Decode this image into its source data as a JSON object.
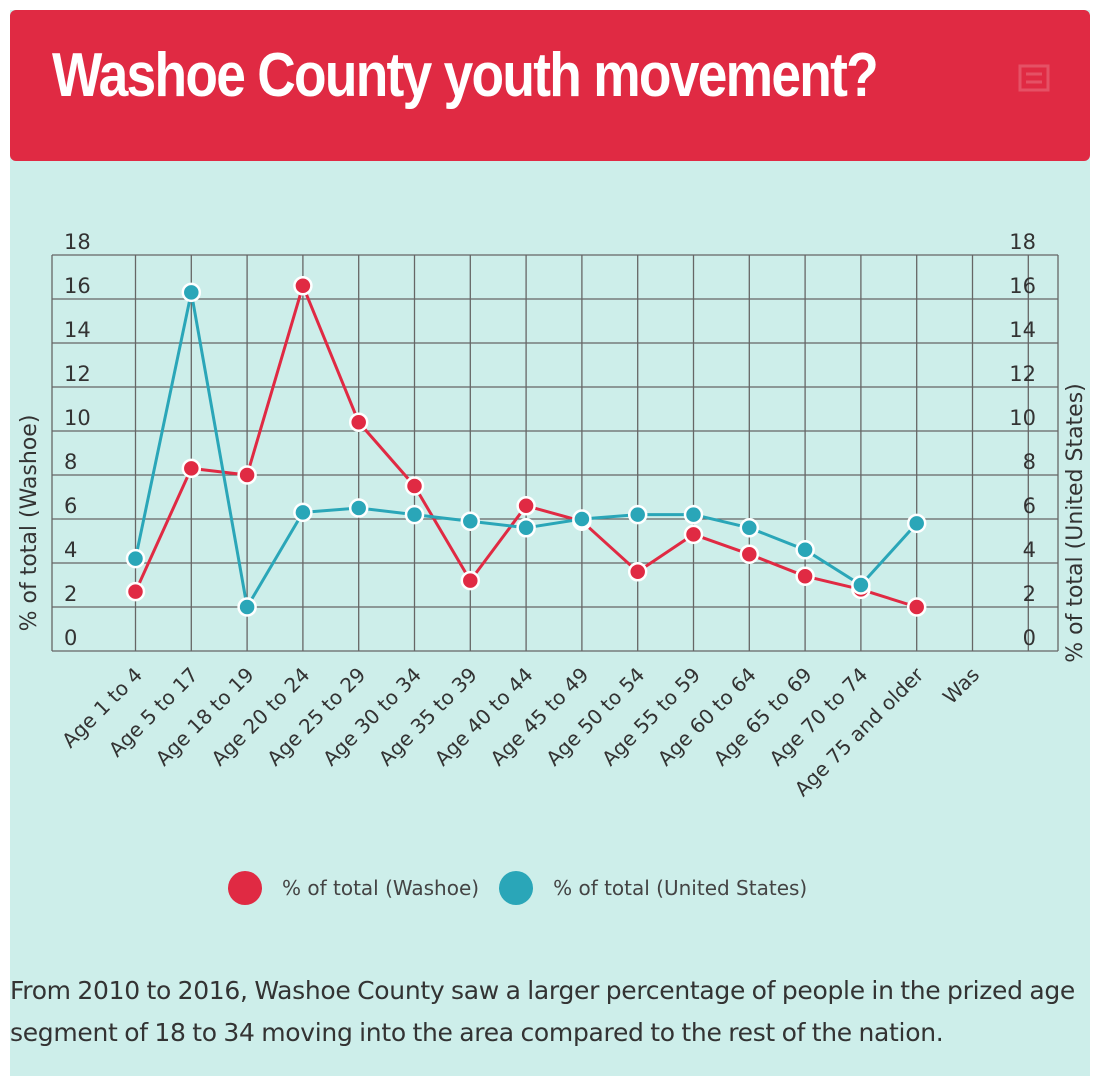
{
  "header": {
    "title": "Washoe County youth movement?"
  },
  "chart_data": {
    "type": "line",
    "title": "Washoe County youth movement?",
    "categories": [
      "Age 1 to 4",
      "Age 5 to 17",
      "Age 18 to 19",
      "Age 20 to 24",
      "Age 25 to 29",
      "Age 30 to 34",
      "Age 35 to 39",
      "Age 40 to 44",
      "Age 45 to 49",
      "Age 50 to 54",
      "Age 55 to 59",
      "Age 60 to 64",
      "Age 65 to 69",
      "Age 70 to 74",
      "Age 75 and older",
      "Was"
    ],
    "series": [
      {
        "name": "% of total (Washoe)",
        "color": "#e02a43",
        "axis": "left",
        "values": [
          2.7,
          8.3,
          8.0,
          16.6,
          10.4,
          7.5,
          3.2,
          6.6,
          5.9,
          3.6,
          5.3,
          4.4,
          3.4,
          2.8,
          2.0,
          null
        ]
      },
      {
        "name": "% of total (United States)",
        "color": "#2aa6b8",
        "axis": "right",
        "values": [
          4.2,
          16.3,
          2.0,
          6.3,
          6.5,
          6.2,
          5.9,
          5.6,
          6.0,
          6.2,
          6.2,
          5.6,
          4.6,
          3.0,
          5.8,
          null
        ]
      }
    ],
    "ylabel": "% of total (Washoe)",
    "ylabel_right": "% of total (United States)",
    "ylim": [
      0,
      18
    ],
    "yticks": [
      0,
      2,
      4,
      6,
      8,
      10,
      12,
      14,
      16,
      18
    ],
    "grid": true,
    "legend_position": "bottom"
  },
  "caption": "From 2010 to 2016, Washoe County saw a larger percentage of people in the prized age segment of 18 to 34 moving into the area compared to the rest of the nation.",
  "colors": {
    "header": "#e02a43",
    "panel": "#cdeeea",
    "washoe": "#e02a43",
    "us": "#2aa6b8"
  }
}
